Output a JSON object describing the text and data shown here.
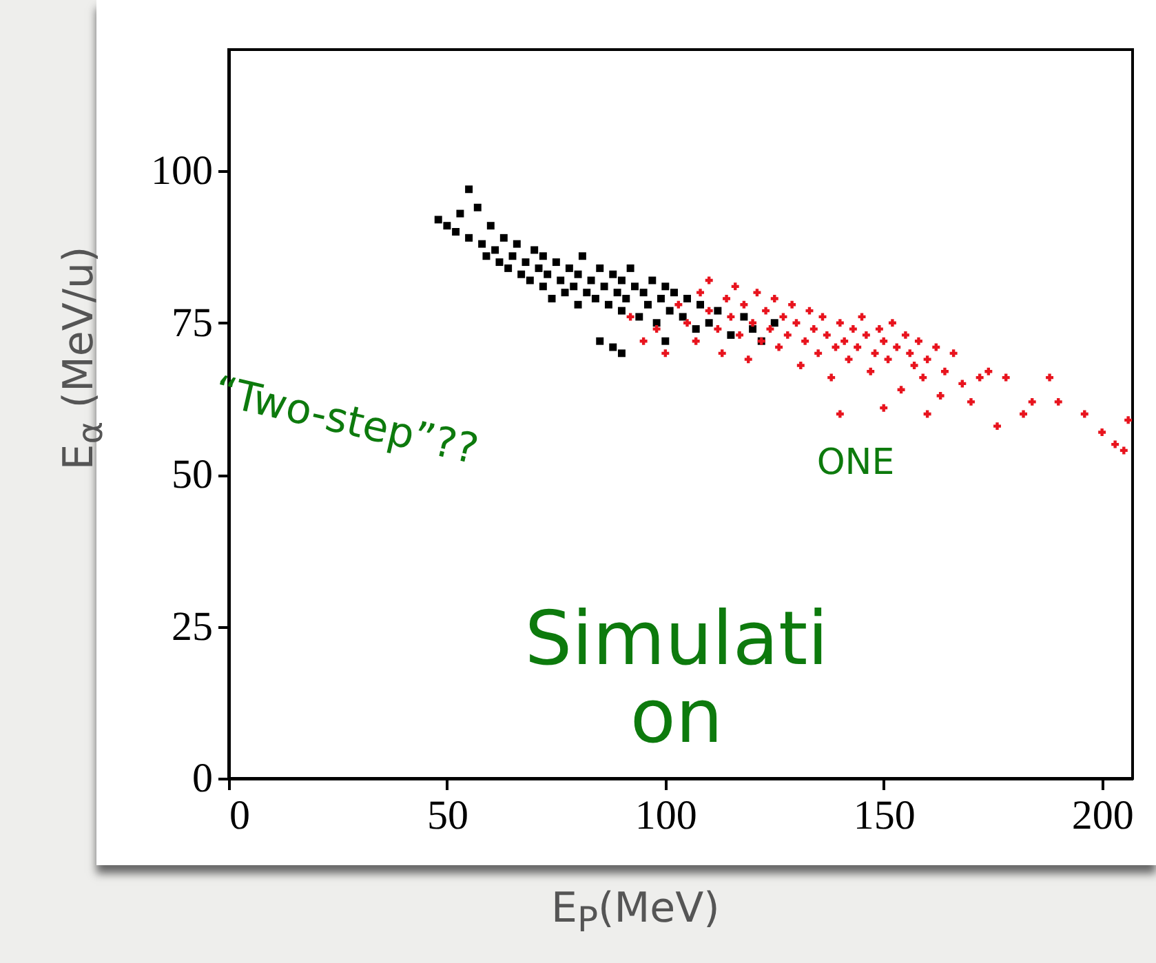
{
  "chart_data": {
    "type": "scatter",
    "xlabel": "E$_{P}$(MeV)",
    "ylabel": "E$_{α}$ (MeV/u)",
    "xlim": [
      0,
      207
    ],
    "ylim": [
      0,
      120
    ],
    "xticks": [
      0,
      50,
      100,
      150,
      200
    ],
    "yticks": [
      0,
      25,
      50,
      75,
      100
    ],
    "annotations": [
      "“Two-step”??",
      "ONE",
      "Simulati\non"
    ],
    "series": [
      {
        "color": "#000000",
        "marker": "square",
        "x": [
          48,
          50,
          52,
          53,
          55,
          55,
          57,
          58,
          59,
          60,
          61,
          62,
          63,
          64,
          65,
          66,
          67,
          68,
          69,
          70,
          71,
          72,
          72,
          73,
          74,
          75,
          76,
          77,
          78,
          79,
          80,
          80,
          81,
          82,
          83,
          84,
          85,
          86,
          87,
          88,
          89,
          90,
          90,
          91,
          92,
          93,
          94,
          95,
          96,
          97,
          98,
          99,
          100,
          101,
          102,
          104,
          105,
          107,
          108,
          110,
          112,
          115,
          118,
          120,
          122,
          125,
          85,
          90,
          88,
          100
        ],
        "values": [
          92,
          91,
          90,
          93,
          97,
          89,
          94,
          88,
          86,
          91,
          87,
          85,
          89,
          84,
          86,
          88,
          83,
          85,
          82,
          87,
          84,
          86,
          81,
          83,
          79,
          85,
          82,
          80,
          84,
          81,
          83,
          78,
          86,
          80,
          82,
          79,
          84,
          81,
          78,
          83,
          80,
          77,
          82,
          79,
          84,
          81,
          76,
          80,
          78,
          82,
          75,
          79,
          81,
          77,
          80,
          76,
          79,
          74,
          78,
          75,
          77,
          73,
          76,
          74,
          72,
          75,
          72,
          70,
          71,
          72
        ]
      },
      {
        "color": "#e8141e",
        "marker": "cross",
        "x": [
          92,
          95,
          98,
          100,
          103,
          105,
          107,
          108,
          110,
          110,
          112,
          113,
          114,
          115,
          116,
          117,
          118,
          119,
          120,
          121,
          122,
          123,
          124,
          125,
          126,
          127,
          128,
          129,
          130,
          131,
          132,
          133,
          134,
          135,
          136,
          137,
          138,
          139,
          140,
          141,
          142,
          143,
          144,
          145,
          146,
          147,
          148,
          149,
          150,
          151,
          152,
          153,
          154,
          155,
          156,
          157,
          158,
          159,
          160,
          162,
          163,
          164,
          166,
          168,
          170,
          172,
          174,
          176,
          178,
          182,
          184,
          188,
          190,
          196,
          200,
          203,
          205,
          206,
          140,
          150,
          160
        ],
        "values": [
          76,
          72,
          74,
          70,
          78,
          75,
          72,
          80,
          82,
          77,
          74,
          70,
          79,
          76,
          81,
          73,
          78,
          69,
          75,
          80,
          72,
          77,
          74,
          79,
          71,
          76,
          73,
          78,
          75,
          68,
          72,
          77,
          74,
          70,
          76,
          73,
          66,
          71,
          75,
          72,
          69,
          74,
          71,
          76,
          73,
          67,
          70,
          74,
          72,
          69,
          75,
          71,
          64,
          73,
          70,
          68,
          72,
          66,
          69,
          71,
          63,
          67,
          70,
          65,
          62,
          66,
          67,
          58,
          66,
          60,
          62,
          66,
          62,
          60,
          57,
          55,
          54,
          59,
          60,
          61,
          60
        ]
      }
    ]
  }
}
